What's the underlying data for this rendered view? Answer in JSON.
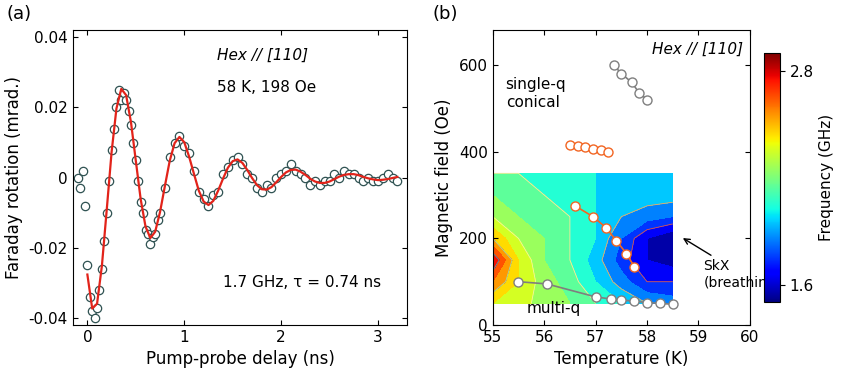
{
  "chart_data": [
    {
      "type": "line",
      "panel": "(a)",
      "xlabel": "Pump-probe delay (ns)",
      "ylabel": "Faraday rotation (mrad.)",
      "xlim": [
        -0.15,
        3.3
      ],
      "xticks": [
        0,
        1,
        2,
        3
      ],
      "ylim": [
        -0.042,
        0.042
      ],
      "yticks": [
        -0.04,
        -0.02,
        0,
        0.02,
        0.04
      ],
      "annotations": [
        "Hex // [110]",
        "58 K, 198 Oe",
        "1.7 GHz, τ = 0.74 ns"
      ],
      "series": [
        {
          "type": "scatter",
          "marker": "o",
          "color": "#2f5252",
          "x": [
            -0.1,
            -0.075,
            -0.05,
            -0.025,
            0.0,
            0.025,
            0.05,
            0.075,
            0.1,
            0.125,
            0.15,
            0.175,
            0.2,
            0.225,
            0.25,
            0.275,
            0.3,
            0.325,
            0.35,
            0.375,
            0.4,
            0.425,
            0.45,
            0.475,
            0.5,
            0.525,
            0.55,
            0.575,
            0.6,
            0.625,
            0.65,
            0.675,
            0.7,
            0.725,
            0.75,
            0.8,
            0.85,
            0.9,
            0.95,
            1.0,
            1.05,
            1.1,
            1.15,
            1.2,
            1.25,
            1.3,
            1.35,
            1.4,
            1.45,
            1.5,
            1.55,
            1.6,
            1.65,
            1.7,
            1.75,
            1.8,
            1.85,
            1.9,
            1.95,
            2.0,
            2.05,
            2.1,
            2.15,
            2.2,
            2.25,
            2.3,
            2.35,
            2.4,
            2.45,
            2.5,
            2.55,
            2.6,
            2.65,
            2.7,
            2.75,
            2.8,
            2.85,
            2.9,
            2.95,
            3.0,
            3.05,
            3.1,
            3.15,
            3.2
          ],
          "values": [
            0.0,
            -0.003,
            0.002,
            -0.008,
            -0.025,
            -0.034,
            -0.038,
            -0.04,
            -0.037,
            -0.032,
            -0.026,
            -0.018,
            -0.01,
            -0.001,
            0.008,
            0.014,
            0.02,
            0.025,
            0.022,
            0.024,
            0.022,
            0.019,
            0.015,
            0.01,
            0.005,
            -0.001,
            -0.007,
            -0.01,
            -0.015,
            -0.016,
            -0.019,
            -0.017,
            -0.016,
            -0.012,
            -0.01,
            -0.003,
            0.006,
            0.01,
            0.012,
            0.009,
            0.007,
            0.002,
            -0.004,
            -0.006,
            -0.008,
            -0.005,
            -0.004,
            0.001,
            0.003,
            0.005,
            0.006,
            0.004,
            0.001,
            0.0,
            -0.003,
            -0.004,
            -0.002,
            -0.003,
            0.0,
            0.001,
            0.002,
            0.004,
            0.002,
            0.001,
            0.0,
            -0.002,
            -0.001,
            -0.002,
            -0.001,
            -0.001,
            0.001,
            0.0,
            0.002,
            0.001,
            0.001,
            0.0,
            -0.001,
            0.0,
            -0.001,
            -0.001,
            0.0,
            0.001,
            0.0,
            -0.001
          ]
        },
        {
          "type": "line",
          "color": "#e2231a",
          "x": [
            0.0,
            0.05,
            0.1,
            0.15,
            0.2,
            0.25,
            0.3,
            0.35,
            0.4,
            0.45,
            0.5,
            0.55,
            0.6,
            0.65,
            0.7,
            0.75,
            0.8,
            0.85,
            0.9,
            0.95,
            1.0,
            1.05,
            1.1,
            1.15,
            1.2,
            1.25,
            1.3,
            1.35,
            1.4,
            1.45,
            1.5,
            1.55,
            1.6,
            1.65,
            1.7,
            1.75,
            1.8,
            1.85,
            1.9,
            1.95,
            2.0,
            2.05,
            2.1,
            2.15,
            2.2,
            2.25,
            2.3,
            2.35,
            2.4,
            2.45,
            2.5,
            2.55,
            2.6,
            2.65,
            2.7,
            2.75,
            2.8,
            2.85,
            2.9,
            2.95,
            3.0,
            3.05,
            3.1,
            3.15,
            3.2
          ],
          "values": [
            -0.0276,
            -0.0373,
            -0.0359,
            -0.0251,
            -0.0091,
            0.0073,
            0.0197,
            0.0253,
            0.0235,
            0.0158,
            0.0048,
            -0.0061,
            -0.0139,
            -0.0172,
            -0.0154,
            -0.0098,
            -0.0024,
            0.0048,
            0.0098,
            0.0116,
            0.0101,
            0.006,
            0.0011,
            -0.0037,
            -0.0068,
            -0.0078,
            -0.0066,
            -0.0037,
            -0.0003,
            0.0028,
            0.0047,
            0.0052,
            0.0042,
            0.0022,
            -0.0001,
            -0.0021,
            -0.0033,
            -0.0034,
            -0.0027,
            -0.0013,
            0.0002,
            0.0015,
            0.0022,
            0.0023,
            0.0017,
            0.0008,
            -0.0003,
            -0.0011,
            -0.0015,
            -0.0015,
            -0.0011,
            -0.0004,
            0.0003,
            0.0008,
            0.001,
            0.001,
            0.0007,
            0.0002,
            -0.0002,
            -0.0005,
            -0.0007,
            -0.0006,
            -0.0004,
            -0.0001,
            0.0002
          ]
        }
      ]
    },
    {
      "type": "contour",
      "panel": "(b)",
      "xlabel": "Temperature (K)",
      "ylabel": "Magnetic field (Oe)",
      "xlim": [
        55,
        60
      ],
      "xticks": [
        55,
        56,
        57,
        58,
        59,
        60
      ],
      "ylim": [
        0,
        680
      ],
      "yticks": [
        0,
        200,
        400,
        600
      ],
      "annotations": [
        "Hex // [110]",
        "single-q\nconical",
        "multi-q",
        "SkX\n(breathing)"
      ],
      "x": [
        55.0,
        55.5,
        56.0,
        56.5,
        57.0,
        57.5,
        58.0,
        58.5
      ],
      "y": [
        50,
        100,
        150,
        200,
        250,
        300,
        350
      ],
      "z": [
        [
          2.4,
          2.35,
          2.25,
          2.2,
          2.1,
          2.0,
          1.9,
          1.85
        ],
        [
          2.6,
          2.4,
          2.25,
          2.15,
          2.0,
          1.85,
          1.7,
          1.7
        ],
        [
          2.8,
          2.4,
          2.2,
          2.1,
          1.95,
          1.75,
          1.6,
          1.55
        ],
        [
          2.5,
          2.3,
          2.2,
          2.1,
          2.0,
          1.8,
          1.6,
          1.5
        ],
        [
          2.3,
          2.2,
          2.15,
          2.1,
          2.0,
          1.9,
          1.85,
          1.8
        ],
        [
          2.2,
          2.15,
          2.1,
          2.05,
          2.0,
          2.0,
          1.95,
          1.95
        ],
        [
          2.1,
          2.1,
          2.1,
          2.05,
          2.0,
          2.0,
          2.0,
          2.0
        ]
      ],
      "colorbar": {
        "label": "Frequency (GHz)",
        "range": [
          1.5,
          2.9
        ],
        "ticks": [
          1.6,
          2.8
        ]
      },
      "series": [
        {
          "color": "#7f7f7f",
          "marker": "o",
          "x": [
            57.35,
            57.5,
            57.7,
            57.85,
            58.0
          ],
          "values": [
            600,
            580,
            560,
            535,
            520
          ]
        },
        {
          "color": "#f26522",
          "marker": "o",
          "x": [
            56.5,
            56.65,
            56.8,
            56.95,
            57.1,
            57.25
          ],
          "values": [
            415,
            412,
            410,
            407,
            404,
            400
          ]
        },
        {
          "color": "#f26522",
          "marker": "o",
          "x": [
            56.6,
            56.95,
            57.2,
            57.4,
            57.6,
            57.75
          ],
          "values": [
            275,
            250,
            225,
            195,
            165,
            135
          ]
        },
        {
          "color": "#7f7f7f",
          "marker": "o",
          "x": [
            55.5,
            56.05,
            57.0,
            57.3,
            57.5,
            57.75,
            58.0,
            58.25,
            58.5
          ],
          "values": [
            100,
            95,
            65,
            60,
            58,
            55,
            52,
            50,
            48
          ]
        }
      ]
    }
  ]
}
